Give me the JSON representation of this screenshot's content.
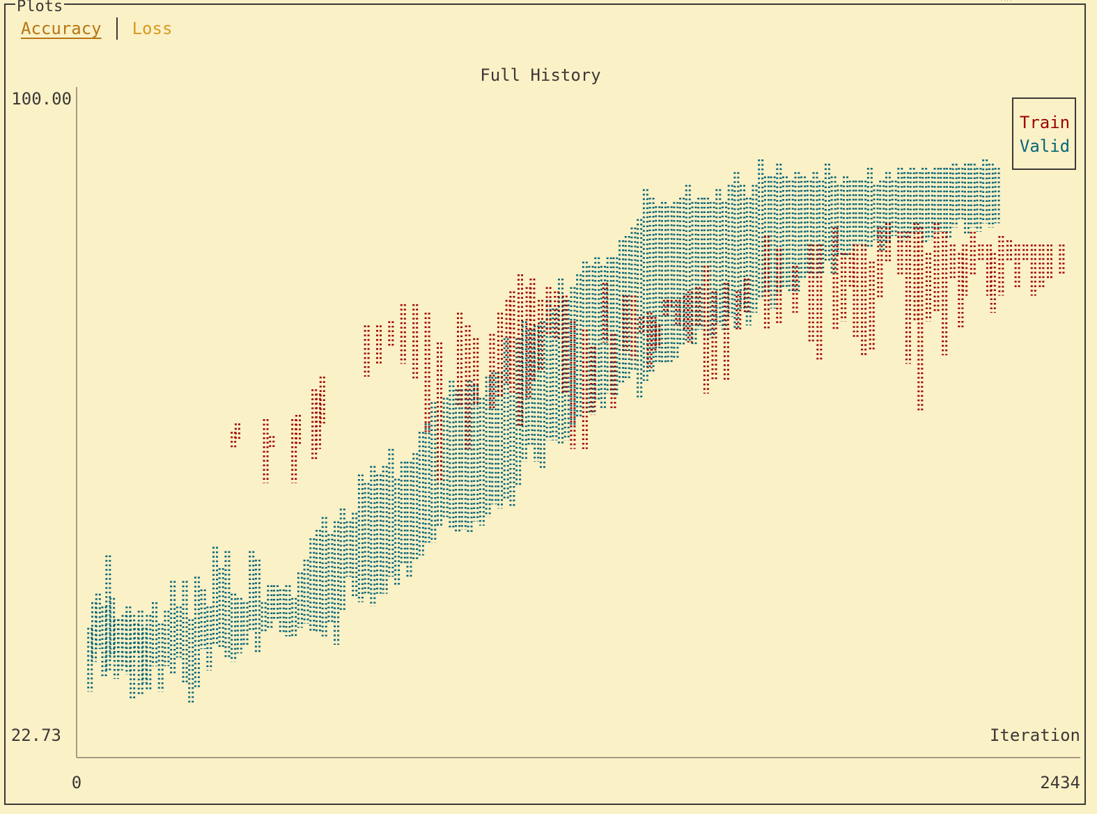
{
  "panel": {
    "title": "Plots"
  },
  "tabs": [
    {
      "label": "Accuracy",
      "active": true
    },
    {
      "label": "Loss",
      "active": false
    }
  ],
  "colors": {
    "background": "#fbf1c7",
    "foreground": "#3c3836",
    "train": "#9d0006",
    "valid": "#076678",
    "tab_active": "#b57614",
    "tab_inactive": "#d79921"
  },
  "chart_data": {
    "type": "scatter",
    "title": "Full History",
    "xlabel": "Iteration",
    "ylabel": "",
    "xlim": [
      0,
      2434
    ],
    "ylim": [
      22.73,
      100.0
    ],
    "x_tick_labels": [
      "0",
      "2434"
    ],
    "y_tick_labels": [
      "100.00",
      "22.73"
    ],
    "legend_position": "top-right",
    "style": "braille dot columns (per-column min/max range)",
    "series": [
      {
        "name": "Train",
        "color": "#9d0006",
        "x": [
          370,
          380,
          450,
          465,
          520,
          530,
          570,
          580,
          590,
          700,
          730,
          760,
          790,
          820,
          850,
          880,
          930,
          950,
          970,
          1010,
          1030,
          1050,
          1060,
          1080,
          1100,
          1110,
          1130,
          1150,
          1170,
          1190,
          1210,
          1240,
          1260,
          1290,
          1310,
          1340,
          1360,
          1380,
          1400,
          1410,
          1420,
          1440,
          1450,
          1470,
          1490,
          1500,
          1520,
          1540,
          1560,
          1590,
          1620,
          1640,
          1690,
          1720,
          1760,
          1800,
          1820,
          1860,
          1880,
          1900,
          1910,
          1930,
          1950,
          1970,
          1990,
          2020,
          2040,
          2060,
          2070,
          2090,
          2110,
          2130,
          2150,
          2170,
          2180,
          2200,
          2220,
          2240,
          2250,
          2270,
          2290,
          2310,
          2330,
          2350,
          2370,
          2390,
          2420
        ],
        "y_min": [
          57.5,
          58.5,
          53.5,
          57.5,
          53.5,
          58.0,
          56.0,
          57.5,
          60.5,
          66.0,
          67.5,
          69.5,
          67.5,
          65.5,
          59.5,
          53.5,
          62.5,
          57.5,
          62.5,
          62.0,
          63.5,
          65.0,
          64.0,
          60.0,
          63.5,
          65.5,
          66.5,
          71.0,
          70.5,
          64.0,
          57.5,
          57.5,
          61.5,
          70.0,
          62.0,
          69.0,
          68.0,
          71.0,
          67.0,
          69.0,
          69.5,
          73.0,
          74.0,
          72.0,
          71.5,
          70.0,
          72.0,
          64.0,
          65.5,
          65.5,
          71.5,
          73.5,
          71.5,
          72.0,
          73.5,
          70.0,
          68.0,
          71.5,
          72.5,
          76.5,
          70.5,
          68.5,
          69.0,
          75.0,
          79.5,
          78.0,
          67.5,
          72.5,
          62.0,
          72.5,
          73.5,
          68.5,
          77.5,
          71.5,
          75.5,
          78.0,
          79.5,
          75.5,
          73.5,
          75.5,
          79.5,
          76.5,
          79.5,
          75.5,
          76.5,
          77.5,
          78.0
        ],
        "y_max": [
          59.5,
          60.5,
          61.0,
          59.0,
          61.0,
          61.5,
          64.5,
          64.0,
          66.0,
          72.0,
          72.0,
          72.5,
          74.5,
          74.5,
          73.5,
          70.0,
          73.5,
          72.0,
          70.5,
          71.0,
          73.5,
          75.0,
          76.0,
          78.0,
          76.5,
          77.5,
          75.0,
          76.5,
          76.0,
          75.5,
          72.5,
          71.5,
          69.5,
          77.0,
          71.0,
          75.5,
          75.5,
          73.0,
          73.5,
          73.0,
          72.0,
          75.0,
          75.0,
          75.0,
          75.5,
          76.0,
          76.5,
          79.0,
          76.0,
          77.0,
          76.0,
          77.5,
          82.5,
          81.0,
          79.0,
          81.5,
          81.5,
          83.5,
          80.5,
          80.5,
          81.5,
          81.5,
          79.5,
          83.5,
          84.0,
          83.0,
          83.0,
          84.0,
          83.5,
          80.5,
          84.0,
          83.0,
          81.5,
          80.5,
          81.5,
          83.0,
          81.5,
          81.5,
          80.5,
          82.5,
          82.0,
          81.5,
          81.5,
          81.5,
          81.5,
          81.5,
          81.5
        ]
      },
      {
        "name": "Valid",
        "color": "#076678",
        "x": [
          15,
          25,
          35,
          50,
          60,
          70,
          80,
          90,
          100,
          110,
          120,
          130,
          140,
          150,
          160,
          175,
          190,
          205,
          220,
          235,
          250,
          265,
          280,
          295,
          310,
          325,
          340,
          355,
          370,
          385,
          400,
          415,
          430,
          445,
          460,
          475,
          490,
          505,
          520,
          535,
          550,
          565,
          580,
          595,
          610,
          625,
          640,
          655,
          670,
          685,
          700,
          715,
          730,
          745,
          760,
          775,
          790,
          805,
          820,
          835,
          850,
          865,
          880,
          895,
          910,
          925,
          940,
          955,
          970,
          985,
          1000,
          1015,
          1030,
          1045,
          1060,
          1075,
          1090,
          1105,
          1120,
          1135,
          1150,
          1165,
          1180,
          1195,
          1210,
          1225,
          1240,
          1255,
          1270,
          1285,
          1300,
          1315,
          1330,
          1345,
          1360,
          1375,
          1390,
          1405,
          1420,
          1435,
          1450,
          1465,
          1480,
          1495,
          1510,
          1525,
          1540,
          1555,
          1570,
          1585,
          1600,
          1615,
          1630,
          1645,
          1660,
          1675,
          1690,
          1705,
          1720,
          1735,
          1750,
          1765,
          1780,
          1795,
          1810,
          1825,
          1840,
          1855,
          1870,
          1885,
          1900,
          1915,
          1930,
          1945,
          1960,
          1975,
          1990,
          2005,
          2020,
          2035,
          2050,
          2065,
          2080,
          2095,
          2110,
          2125,
          2140,
          2155,
          2170,
          2185,
          2200,
          2215,
          2230,
          2245,
          2260,
          2275,
          2290
        ],
        "y_min": [
          29.0,
          32.5,
          34.0,
          30.5,
          31.5,
          33.0,
          30.5,
          31.5,
          32.0,
          31.0,
          28.0,
          33.5,
          28.5,
          30.0,
          29.0,
          32.0,
          29.0,
          32.0,
          31.0,
          33.0,
          30.0,
          27.5,
          29.5,
          34.0,
          31.5,
          34.5,
          34.0,
          33.0,
          32.5,
          33.5,
          34.5,
          36.0,
          33.5,
          36.0,
          36.5,
          37.5,
          36.0,
          35.5,
          35.5,
          36.5,
          37.0,
          36.0,
          36.0,
          35.5,
          37.0,
          34.5,
          38.5,
          42.5,
          40.0,
          39.5,
          40.5,
          39.0,
          40.5,
          40.5,
          42.5,
          41.5,
          44.0,
          42.5,
          44.5,
          45.0,
          46.5,
          46.5,
          48.5,
          49.5,
          48.0,
          47.5,
          48.0,
          47.5,
          49.0,
          48.5,
          49.5,
          51.0,
          50.5,
          51.5,
          50.5,
          53.0,
          56.0,
          58.0,
          56.0,
          55.0,
          58.5,
          58.5,
          58.0,
          58.5,
          60.0,
          61.0,
          62.0,
          61.5,
          63.0,
          62.0,
          64.0,
          63.5,
          65.0,
          65.5,
          66.5,
          63.5,
          65.5,
          66.5,
          67.5,
          67.5,
          67.5,
          68.0,
          69.5,
          70.0,
          69.5,
          71.5,
          70.5,
          70.5,
          72.0,
          71.5,
          73.0,
          71.5,
          74.0,
          72.0,
          73.5,
          75.0,
          76.0,
          74.0,
          75.5,
          76.5,
          76.0,
          76.0,
          77.5,
          78.0,
          77.5,
          78.0,
          79.5,
          78.0,
          80.0,
          80.0,
          79.5,
          81.5,
          81.0,
          81.0,
          82.0,
          80.5,
          81.5,
          82.5,
          81.5,
          82.0,
          82.5,
          83.0,
          81.5,
          82.0,
          83.0,
          83.0,
          82.0,
          83.5,
          84.5,
          82.5,
          83.5,
          83.0,
          84.0,
          83.5,
          84.0
        ],
        "y_min_note": "approximate lower envelope",
        "y_max": [
          36.5,
          39.5,
          40.5,
          39.0,
          45.0,
          40.0,
          37.5,
          37.5,
          38.0,
          39.0,
          38.0,
          37.0,
          38.5,
          36.5,
          38.0,
          39.5,
          37.0,
          38.5,
          42.0,
          39.0,
          42.0,
          37.5,
          42.5,
          41.0,
          39.0,
          46.0,
          43.5,
          45.5,
          40.5,
          40.0,
          39.5,
          45.5,
          44.5,
          39.5,
          41.5,
          41.5,
          41.0,
          41.5,
          40.0,
          43.0,
          44.5,
          47.0,
          48.0,
          49.5,
          47.5,
          49.0,
          50.5,
          49.0,
          50.0,
          54.5,
          53.5,
          55.5,
          54.5,
          55.5,
          57.5,
          54.0,
          56.0,
          56.0,
          57.0,
          59.5,
          60.5,
          63.0,
          62.0,
          63.5,
          65.5,
          64.5,
          64.5,
          65.5,
          65.0,
          63.5,
          66.0,
          66.5,
          66.5,
          70.5,
          67.5,
          70.5,
          72.5,
          71.5,
          72.0,
          72.5,
          75.0,
          74.0,
          77.5,
          75.0,
          76.5,
          78.0,
          79.5,
          79.0,
          80.0,
          79.0,
          80.0,
          80.0,
          82.0,
          82.5,
          83.5,
          84.5,
          88.0,
          87.0,
          86.0,
          86.5,
          86.0,
          86.5,
          87.0,
          88.5,
          86.5,
          87.0,
          87.0,
          86.5,
          88.0,
          86.5,
          88.5,
          90.0,
          88.5,
          87.0,
          88.5,
          91.5,
          89.5,
          89.5,
          91.0,
          89.5,
          89.0,
          90.0,
          89.5,
          89.0,
          90.0,
          89.0,
          91.0,
          89.5,
          88.5,
          89.5,
          89.0,
          89.0,
          89.0,
          90.5,
          88.5,
          89.0,
          90.0,
          89.0,
          90.5,
          90.0,
          90.5,
          90.0,
          90.5,
          90.0,
          90.5,
          90.5,
          90.5,
          91.0,
          90.5,
          91.0,
          91.0,
          90.5,
          91.5,
          91.0,
          90.5
        ]
      }
    ]
  },
  "legend": {
    "train_label": "Train",
    "valid_label": "Valid"
  }
}
